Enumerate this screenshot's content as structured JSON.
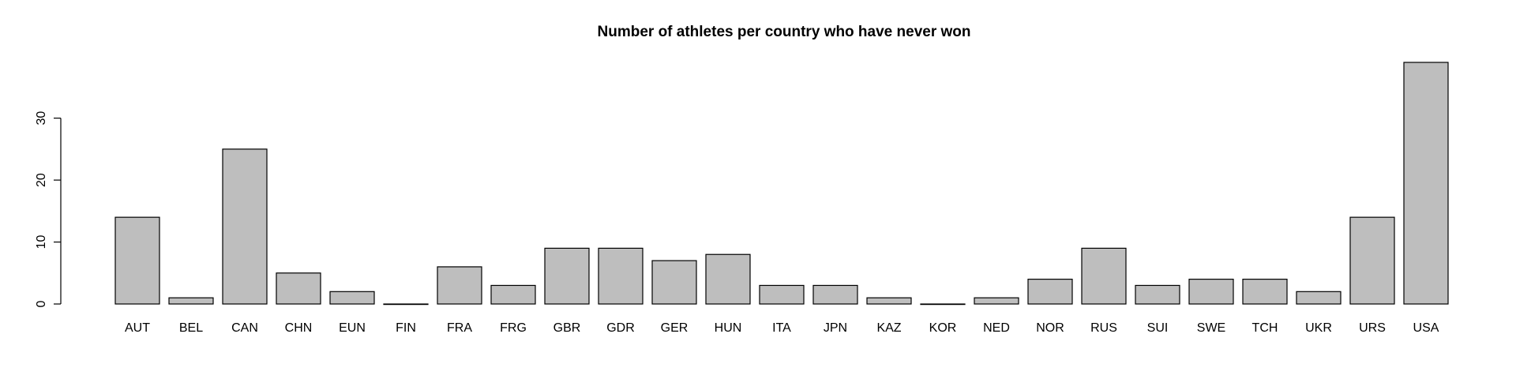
{
  "chart_data": {
    "type": "bar",
    "title": "Number of athletes per country who have never won",
    "xlabel": "",
    "ylabel": "",
    "categories": [
      "AUT",
      "BEL",
      "CAN",
      "CHN",
      "EUN",
      "FIN",
      "FRA",
      "FRG",
      "GBR",
      "GDR",
      "GER",
      "HUN",
      "ITA",
      "JPN",
      "KAZ",
      "KOR",
      "NED",
      "NOR",
      "RUS",
      "SUI",
      "SWE",
      "TCH",
      "UKR",
      "URS",
      "USA"
    ],
    "values": [
      14,
      1,
      25,
      5,
      2,
      0,
      6,
      3,
      9,
      9,
      7,
      8,
      3,
      3,
      1,
      0,
      1,
      4,
      9,
      3,
      4,
      4,
      2,
      14,
      39
    ],
    "ylim": [
      0,
      39
    ],
    "yticks": [
      0,
      10,
      20,
      30
    ],
    "grid": false,
    "bar_color": "#bebebe",
    "bar_edge_color": "#000000"
  }
}
